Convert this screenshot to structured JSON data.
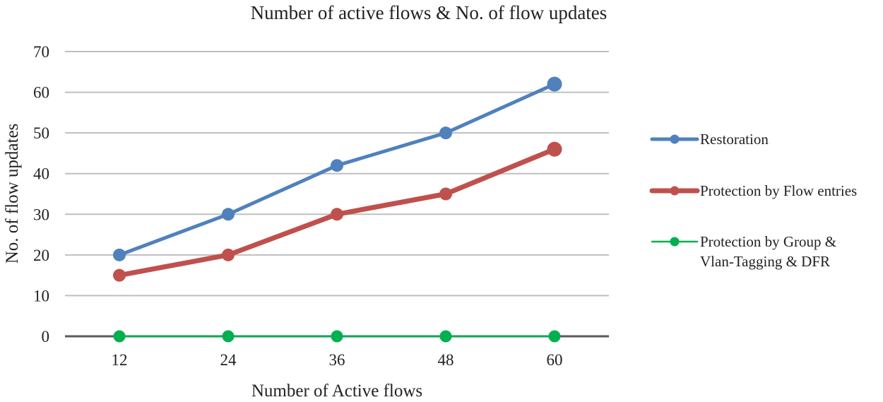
{
  "chart_data": {
    "type": "line",
    "title": "Number of active flows & No. of flow updates",
    "xlabel": "Number of Active flows",
    "ylabel": "No. of flow updates",
    "categories": [
      "12",
      "24",
      "36",
      "48",
      "60"
    ],
    "ylim": [
      0,
      70
    ],
    "yticks": [
      0,
      10,
      20,
      30,
      40,
      50,
      60,
      70
    ],
    "grid": true,
    "legend_position": "right",
    "series": [
      {
        "name": "Restoration",
        "values": [
          20,
          30,
          42,
          50,
          62
        ],
        "color": "#4f81bd"
      },
      {
        "name": "Protection by Flow entries",
        "values": [
          15,
          20,
          30,
          35,
          46
        ],
        "color": "#c0504d"
      },
      {
        "name": "Protection by Group & Vlan-Tagging & DFR",
        "name_lines": [
          "Protection by Group &",
          "Vlan-Tagging & DFR"
        ],
        "values": [
          0,
          0,
          0,
          0,
          0
        ],
        "color": "#00b050"
      }
    ]
  }
}
